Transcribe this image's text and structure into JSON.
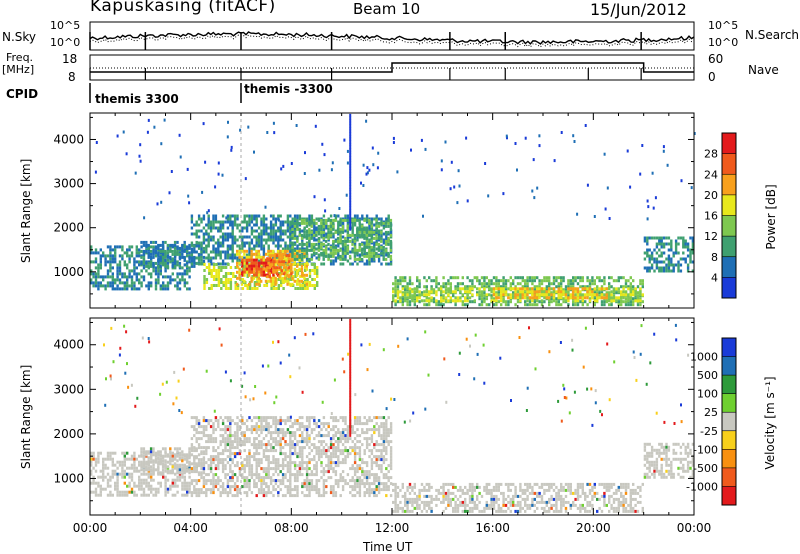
{
  "header": {
    "station": "Kapuskasing (fitACF)",
    "beam": "Beam 10",
    "date": "15/Jun/2012"
  },
  "top_panels": {
    "nsky_label": "N.Sky",
    "nsky_ticks": [
      "10^5",
      "10^0"
    ],
    "nsearch_ticks": [
      "10^5",
      "10^0"
    ],
    "nsearch_label": "N.Search",
    "freq_label": "Freq.",
    "freq_unit": "[MHz]",
    "freq_ticks": [
      "18",
      "8"
    ],
    "nave_ticks": [
      "60",
      "0"
    ],
    "nave_label": "Nave",
    "cpid_label": "CPID",
    "cpid_entries": [
      "themis 3300",
      "themis -3300"
    ]
  },
  "chart_data": [
    {
      "type": "heatmap",
      "panel": "power",
      "ylabel": "Slant Range [km]",
      "xlabel": "Time UT",
      "x_ticks": [
        "00:00",
        "04:00",
        "08:00",
        "12:00",
        "16:00",
        "20:00",
        "00:00"
      ],
      "y_ticks": [
        1000,
        2000,
        3000,
        4000
      ],
      "ylim": [
        180,
        4600
      ],
      "xlim_hours": [
        0,
        24
      ],
      "colorbar_label": "Power [dB]",
      "colorbar_ticks": [
        "28",
        "24",
        "20",
        "16",
        "12",
        "8",
        "4"
      ],
      "colorbar_colors": [
        "#e31a1c",
        "#f05a1c",
        "#f8a01c",
        "#e8e81c",
        "#7ec850",
        "#3fa070",
        "#1f6fb5",
        "#1a3bd8"
      ],
      "regions": [
        {
          "t0": 0.0,
          "t1": 4.0,
          "r0": 600,
          "r1": 1600,
          "level": 1
        },
        {
          "t0": 2.0,
          "t1": 4.5,
          "r0": 1100,
          "r1": 1700,
          "level": 1
        },
        {
          "t0": 4.0,
          "t1": 12.0,
          "r0": 1200,
          "r1": 2300,
          "level": 1
        },
        {
          "t0": 4.5,
          "t1": 9.0,
          "r0": 600,
          "r1": 1200,
          "level": 3
        },
        {
          "t0": 5.8,
          "t1": 8.6,
          "r0": 700,
          "r1": 1500,
          "level": 4
        },
        {
          "t0": 6.0,
          "t1": 7.5,
          "r0": 900,
          "r1": 1300,
          "level": 6
        },
        {
          "t0": 7.0,
          "t1": 8.0,
          "r0": 900,
          "r1": 1400,
          "level": 5
        },
        {
          "t0": 8.0,
          "t1": 12.0,
          "r0": 1300,
          "r1": 2200,
          "level": 2
        },
        {
          "t0": 12.0,
          "t1": 22.0,
          "r0": 250,
          "r1": 900,
          "level": 2
        },
        {
          "t0": 12.0,
          "t1": 22.0,
          "r0": 350,
          "r1": 650,
          "level": 3
        },
        {
          "t0": 16.0,
          "t1": 20.5,
          "r0": 400,
          "r1": 650,
          "level": 4
        },
        {
          "t0": 22.0,
          "t1": 24.0,
          "r0": 1000,
          "r1": 1800,
          "level": 1
        }
      ]
    },
    {
      "type": "heatmap",
      "panel": "velocity",
      "ylabel": "Slant Range [km]",
      "xlabel": "Time UT",
      "x_ticks": [
        "00:00",
        "04:00",
        "08:00",
        "12:00",
        "16:00",
        "20:00",
        "00:00"
      ],
      "y_ticks": [
        1000,
        2000,
        3000,
        4000
      ],
      "ylim": [
        180,
        4600
      ],
      "xlim_hours": [
        0,
        24
      ],
      "colorbar_label": "Velocity [m s⁻¹]",
      "colorbar_ticks": [
        "1000",
        "500",
        "100",
        "25",
        "-25",
        "-100",
        "-500",
        "-1000"
      ],
      "colorbar_colors": [
        "#1a3bd8",
        "#1f6fb5",
        "#2d9a3a",
        "#6fd030",
        "#c8c8c0",
        "#f8d01c",
        "#f89010",
        "#f05a1c",
        "#e31a1c"
      ],
      "regions": [
        {
          "t0": 0.0,
          "t1": 4.0,
          "r0": 600,
          "r1": 1600
        },
        {
          "t0": 2.0,
          "t1": 4.5,
          "r0": 1100,
          "r1": 1700
        },
        {
          "t0": 4.0,
          "t1": 12.0,
          "r0": 600,
          "r1": 2400
        },
        {
          "t0": 12.0,
          "t1": 22.0,
          "r0": 250,
          "r1": 900
        },
        {
          "t0": 22.0,
          "t1": 24.0,
          "r0": 1000,
          "r1": 1800
        }
      ]
    }
  ]
}
